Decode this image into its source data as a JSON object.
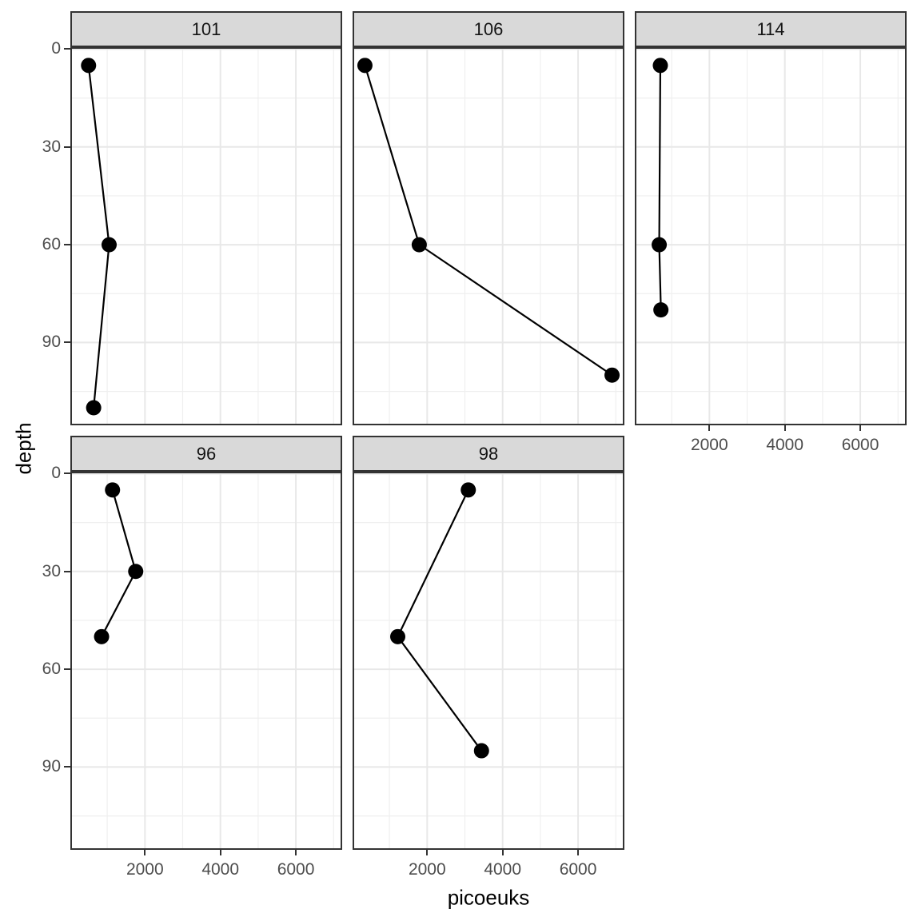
{
  "chart_data": {
    "type": "line",
    "description": "Faceted depth profile scatter-line plot (ggplot2 facet_wrap style), one panel per station, depth increasing downward",
    "xlabel": "picoeuks",
    "ylabel": "depth",
    "x_ticks": [
      2000,
      4000,
      6000
    ],
    "x_minor_ticks": [
      1000,
      3000,
      5000,
      7000
    ],
    "y_ticks": [
      0,
      30,
      60,
      90
    ],
    "y_minor_ticks": [
      15,
      45,
      75,
      105
    ],
    "xlim": [
      22.5,
      7227.5
    ],
    "ylim": [
      -0.6,
      115.4
    ],
    "y_reversed": true,
    "grid": true,
    "legend_position": "none",
    "facets": [
      {
        "label": "101",
        "points": [
          {
            "picoeuks": 505,
            "depth": 5
          },
          {
            "picoeuks": 1050,
            "depth": 60
          },
          {
            "picoeuks": 640,
            "depth": 110
          }
        ]
      },
      {
        "label": "106",
        "points": [
          {
            "picoeuks": 350,
            "depth": 5
          },
          {
            "picoeuks": 1790,
            "depth": 60
          },
          {
            "picoeuks": 6900,
            "depth": 100
          }
        ]
      },
      {
        "label": "114",
        "points": [
          {
            "picoeuks": 700,
            "depth": 5
          },
          {
            "picoeuks": 670,
            "depth": 60
          },
          {
            "picoeuks": 715,
            "depth": 80
          }
        ]
      },
      {
        "label": "96",
        "points": [
          {
            "picoeuks": 1140,
            "depth": 5
          },
          {
            "picoeuks": 1755,
            "depth": 30
          },
          {
            "picoeuks": 850,
            "depth": 50
          }
        ]
      },
      {
        "label": "98",
        "points": [
          {
            "picoeuks": 3090,
            "depth": 5
          },
          {
            "picoeuks": 1220,
            "depth": 50
          },
          {
            "picoeuks": 3440,
            "depth": 85
          }
        ]
      }
    ],
    "colors": {
      "background": "#ffffff",
      "strip_fill": "#d9d9d9",
      "strip_border": "#333333",
      "panel_border": "#333333",
      "grid_major": "#e8e8e8",
      "grid_minor": "#efefef",
      "line": "#000000",
      "point": "#000000",
      "tick_label": "#4d4d4d",
      "axis_title": "#000000",
      "tick_mark": "#333333"
    }
  }
}
